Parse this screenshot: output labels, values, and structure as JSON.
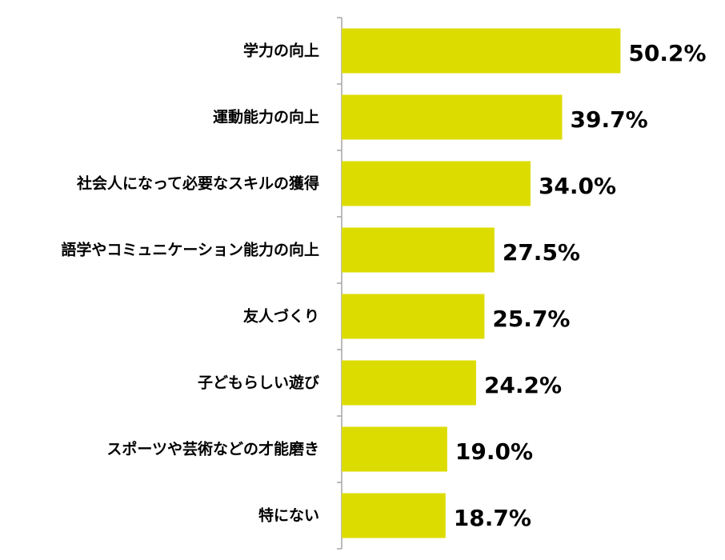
{
  "chart_data": {
    "type": "bar",
    "orientation": "horizontal",
    "title": "",
    "xlabel": "",
    "ylabel": "",
    "categories": [
      "学力の向上",
      "運動能力の向上",
      "社会人になって必要なスキルの獲得",
      "語学やコミュニケーション能力の向上",
      "友人づくり",
      "子どもらしい遊び",
      "スポーツや芸術などの才能磨き",
      "特にない"
    ],
    "values": [
      50.2,
      39.7,
      34.0,
      27.5,
      25.7,
      24.2,
      19.0,
      18.7
    ],
    "value_labels": [
      "50.2%",
      "39.7%",
      "34.0%",
      "27.5%",
      "25.7%",
      "24.2%",
      "19.0%",
      "18.7%"
    ],
    "unit": "%",
    "xlim": [
      0,
      60
    ],
    "grid": false,
    "legend": "none",
    "bar_color": "#dcdc00",
    "axis_color": "#a6a6a6"
  }
}
